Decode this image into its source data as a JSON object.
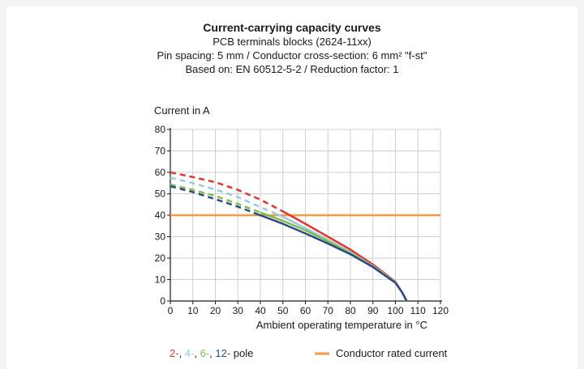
{
  "chart_data": {
    "type": "line",
    "title": "Current-carrying capacity curves",
    "subtitles": [
      "PCB terminals blocks (2624-11xx)",
      "Pin spacing: 5 mm / Conductor cross-section: 6 mm² \"f-st\"",
      "Based on: EN 60512-5-2 / Reduction factor: 1"
    ],
    "ylabel": "Current in A",
    "xlabel": "Ambient operating temperature in °C",
    "xlim": [
      0,
      120
    ],
    "ylim": [
      0,
      80
    ],
    "xticks": [
      0,
      10,
      20,
      30,
      40,
      50,
      60,
      70,
      80,
      90,
      100,
      110,
      120
    ],
    "yticks": [
      0,
      10,
      20,
      30,
      40,
      50,
      60,
      70,
      80
    ],
    "grid": true,
    "series": [
      {
        "name": "2-",
        "color": "#e0362c",
        "points": [
          [
            0,
            60
          ],
          [
            10,
            57.8
          ],
          [
            20,
            55.4
          ],
          [
            30,
            51.8
          ],
          [
            40,
            47.3
          ],
          [
            50,
            41.8
          ],
          [
            60,
            36
          ],
          [
            70,
            30
          ],
          [
            80,
            24
          ],
          [
            90,
            17
          ],
          [
            100,
            9
          ],
          [
            103,
            4
          ],
          [
            105,
            0
          ]
        ],
        "dashed_until_x": 50
      },
      {
        "name": "4-",
        "color": "#9cc8e0",
        "points": [
          [
            0,
            57.5
          ],
          [
            10,
            55
          ],
          [
            20,
            52
          ],
          [
            30,
            48.5
          ],
          [
            40,
            43.8
          ],
          [
            50,
            39.3
          ],
          [
            60,
            34
          ],
          [
            70,
            28.5
          ],
          [
            80,
            22.8
          ],
          [
            90,
            16.3
          ],
          [
            100,
            8.8
          ],
          [
            103,
            4
          ],
          [
            105,
            0
          ]
        ],
        "dashed_until_x": 45
      },
      {
        "name": "6-",
        "color": "#7dbd4a",
        "points": [
          [
            0,
            54.3
          ],
          [
            10,
            51.8
          ],
          [
            20,
            49
          ],
          [
            30,
            45.3
          ],
          [
            40,
            41.3
          ],
          [
            50,
            37.4
          ],
          [
            60,
            33
          ],
          [
            70,
            27.8
          ],
          [
            80,
            22.3
          ],
          [
            90,
            16.1
          ],
          [
            100,
            8.7
          ],
          [
            103,
            4
          ],
          [
            105,
            0
          ]
        ],
        "dashed_until_x": 40
      },
      {
        "name": "12-",
        "color": "#2b4a8c",
        "points": [
          [
            0,
            53.5
          ],
          [
            10,
            50.8
          ],
          [
            20,
            47.5
          ],
          [
            30,
            44
          ],
          [
            40,
            40
          ],
          [
            50,
            36
          ],
          [
            60,
            31.5
          ],
          [
            70,
            26.8
          ],
          [
            80,
            21.8
          ],
          [
            90,
            15.8
          ],
          [
            100,
            8.5
          ],
          [
            103,
            4
          ],
          [
            105,
            0
          ]
        ],
        "dashed_until_x": 38
      }
    ],
    "reference_line": {
      "name": "Conductor rated current",
      "value": 40,
      "color": "#f59a3e"
    },
    "legend": {
      "placement": "bottom",
      "series_label_parts": [
        {
          "text": "2-",
          "color": "#e0362c"
        },
        {
          "text": ", ",
          "color": "#1a1a1a"
        },
        {
          "text": "4-",
          "color": "#9cc8e0"
        },
        {
          "text": ", ",
          "color": "#1a1a1a"
        },
        {
          "text": "6-",
          "color": "#7dbd4a"
        },
        {
          "text": ", ",
          "color": "#1a1a1a"
        },
        {
          "text": "12-",
          "color": "#2b4a8c"
        },
        {
          "text": " pole",
          "color": "#1a1a1a"
        }
      ],
      "reference_label": "Conductor rated current"
    }
  }
}
